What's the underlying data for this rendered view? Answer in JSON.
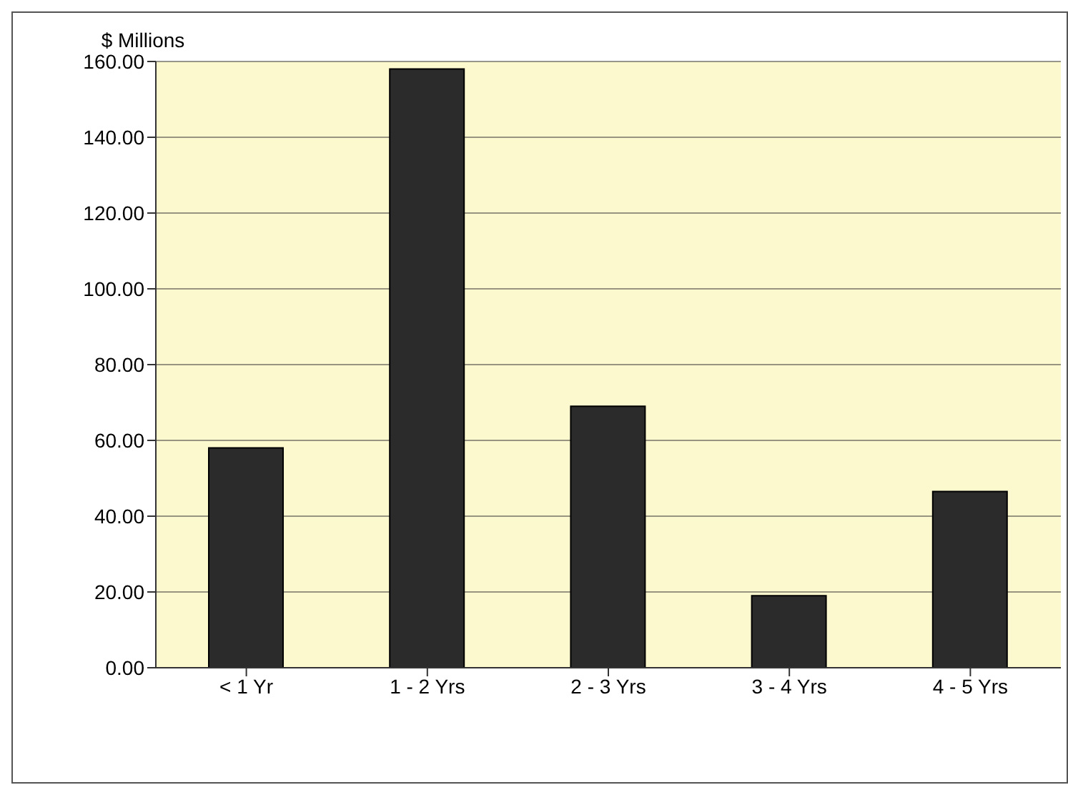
{
  "chart_data": {
    "type": "bar",
    "ylabel": "$ Millions",
    "categories": [
      "< 1 Yr",
      "1 - 2 Yrs",
      "2 - 3 Yrs",
      "3 - 4 Yrs",
      "4 - 5 Yrs"
    ],
    "values": [
      58,
      158,
      69,
      19,
      46.5
    ],
    "color": "#2b2b2b",
    "ylim": [
      0,
      160
    ],
    "yticks": [
      {
        "value": 0,
        "label": "0.00"
      },
      {
        "value": 20,
        "label": "20.00"
      },
      {
        "value": 40,
        "label": "40.00"
      },
      {
        "value": 60,
        "label": "60.00"
      },
      {
        "value": 80,
        "label": "80.00"
      },
      {
        "value": 100,
        "label": "100.00"
      },
      {
        "value": 120,
        "label": "120.00"
      },
      {
        "value": 140,
        "label": "140.00"
      },
      {
        "value": 160,
        "label": "160.00"
      }
    ],
    "grid": "y"
  }
}
